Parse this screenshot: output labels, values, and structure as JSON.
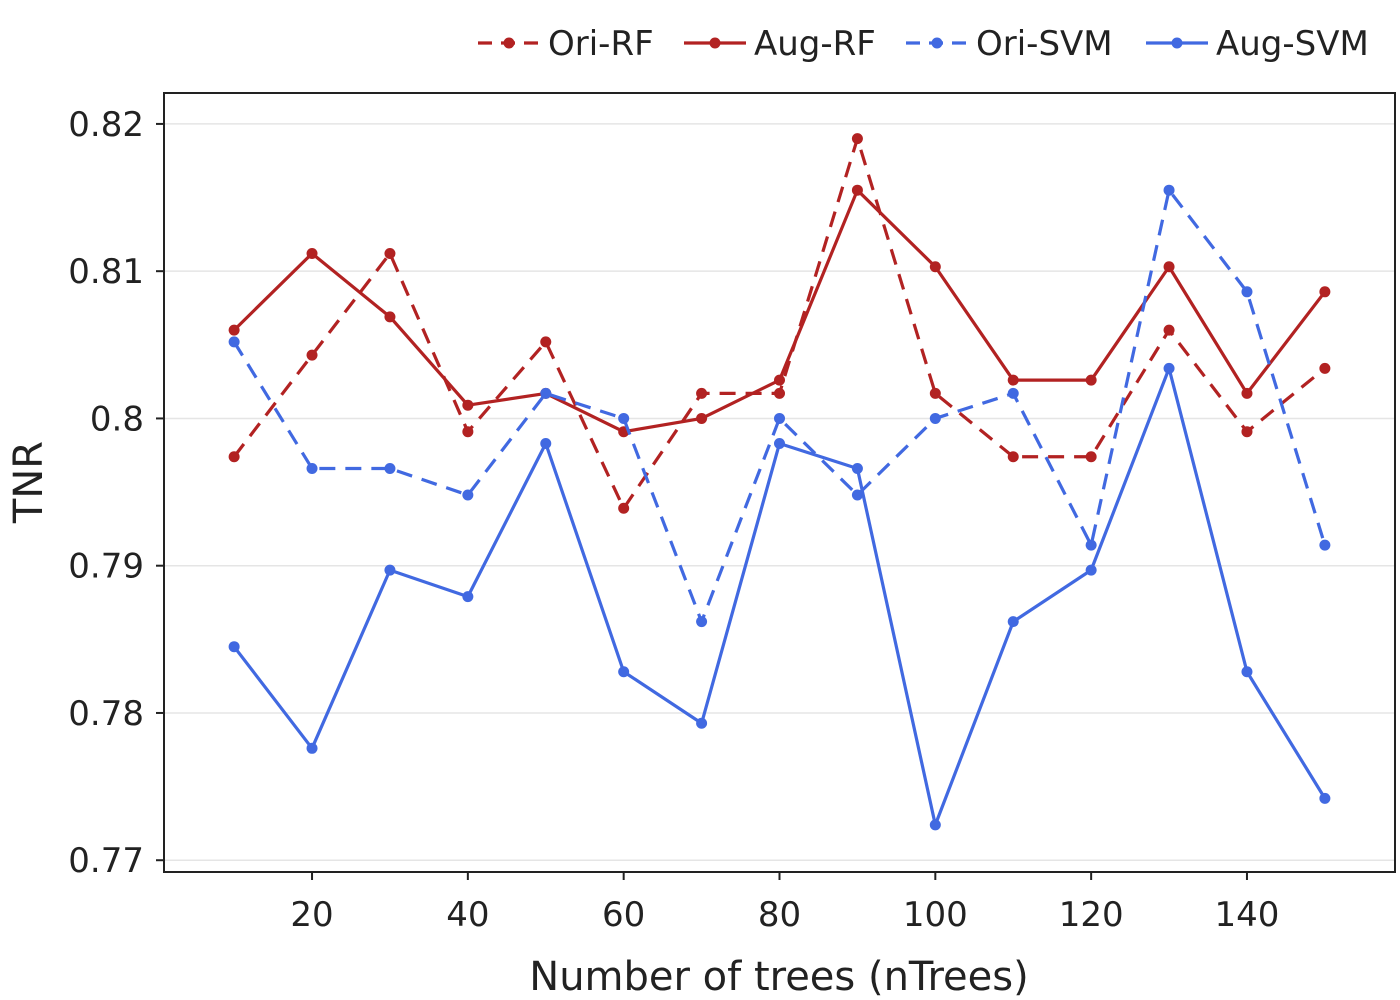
{
  "chart_data": {
    "type": "line",
    "title": "",
    "xlabel": "Number of trees (nTrees)",
    "ylabel": "TNR",
    "xlim": [
      1,
      159
    ],
    "ylim": [
      0.7692,
      0.8221
    ],
    "grid": true,
    "legend_position": "top-right",
    "x": [
      10,
      20,
      30,
      40,
      50,
      60,
      70,
      80,
      90,
      100,
      110,
      120,
      130,
      140,
      150
    ],
    "x_ticks": [
      20,
      40,
      60,
      80,
      100,
      120,
      140
    ],
    "x_tick_labels": [
      "20",
      "40",
      "60",
      "80",
      "100",
      "120",
      "140"
    ],
    "y_ticks": [
      0.77,
      0.78,
      0.79,
      0.8,
      0.81,
      0.82
    ],
    "y_tick_labels": [
      "0.77",
      "0.78",
      "0.79",
      "0.8",
      "0.81",
      "0.82"
    ],
    "series": [
      {
        "name": "Ori-RF",
        "color": "#b22222",
        "dash": "dashed",
        "values": [
          0.7974,
          0.8043,
          0.8112,
          0.7991,
          0.8052,
          0.7939,
          0.8017,
          0.8017,
          0.819,
          0.8017,
          0.7974,
          0.7974,
          0.806,
          0.7991,
          0.8034
        ]
      },
      {
        "name": "Aug-RF",
        "color": "#b22222",
        "dash": "solid",
        "values": [
          0.806,
          0.8112,
          0.8069,
          0.8009,
          0.8017,
          0.7991,
          0.8,
          0.8026,
          0.8155,
          0.8103,
          0.8026,
          0.8026,
          0.8103,
          0.8017,
          0.8086
        ]
      },
      {
        "name": "Ori-SVM",
        "color": "#4169e1",
        "dash": "dashed",
        "values": [
          0.8052,
          0.7966,
          0.7966,
          0.7948,
          0.8017,
          0.8,
          0.7862,
          0.8,
          0.7948,
          0.8,
          0.8017,
          0.7914,
          0.8155,
          0.8086,
          0.7914
        ]
      },
      {
        "name": "Aug-SVM",
        "color": "#4169e1",
        "dash": "solid",
        "values": [
          0.7845,
          0.7776,
          0.7897,
          0.7879,
          0.7983,
          0.7828,
          0.7793,
          0.7983,
          0.7966,
          0.7724,
          0.7862,
          0.7897,
          0.8034,
          0.7828,
          0.7742
        ]
      }
    ]
  }
}
